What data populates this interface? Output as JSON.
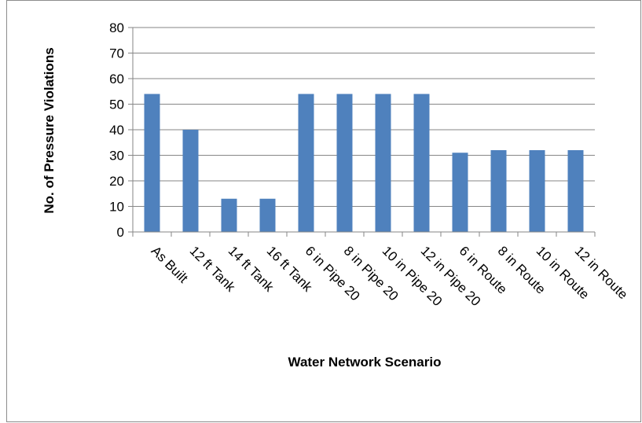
{
  "chart_data": {
    "type": "bar",
    "title": "",
    "xlabel": "Water Network Scenario",
    "ylabel": "No. of Pressure Violations",
    "ylim": [
      0,
      80
    ],
    "yticks": [
      0,
      10,
      20,
      30,
      40,
      50,
      60,
      70,
      80
    ],
    "grid": true,
    "legend": "none",
    "bar_color": "#4f81bd",
    "categories": [
      "As Built",
      "12 ft Tank",
      "14 ft Tank",
      "16 ft Tank",
      "6 in Pipe 20",
      "8 in Pipe 20",
      "10 in Pipe 20",
      "12 in Pipe 20",
      "6 in Route",
      "8 in Route",
      "10 in Route",
      "12 in Route"
    ],
    "values": [
      54,
      40,
      13,
      13,
      54,
      54,
      54,
      54,
      31,
      32,
      32,
      32
    ]
  }
}
